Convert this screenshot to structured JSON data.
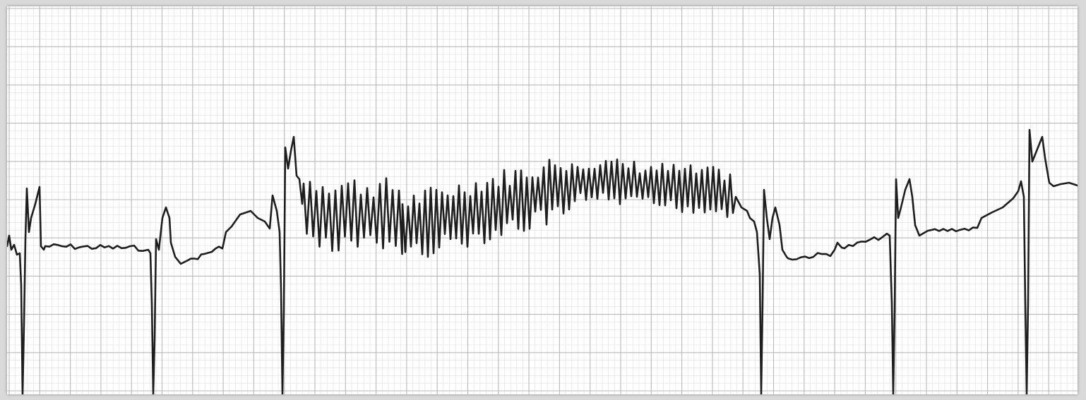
{
  "colors": {
    "paper": "#ffffff",
    "frame": "#d9d9d9",
    "grid_major": "#b9b9b9",
    "grid_minor": "#e2e2e2",
    "trace": "#1e1e1e"
  }
}
